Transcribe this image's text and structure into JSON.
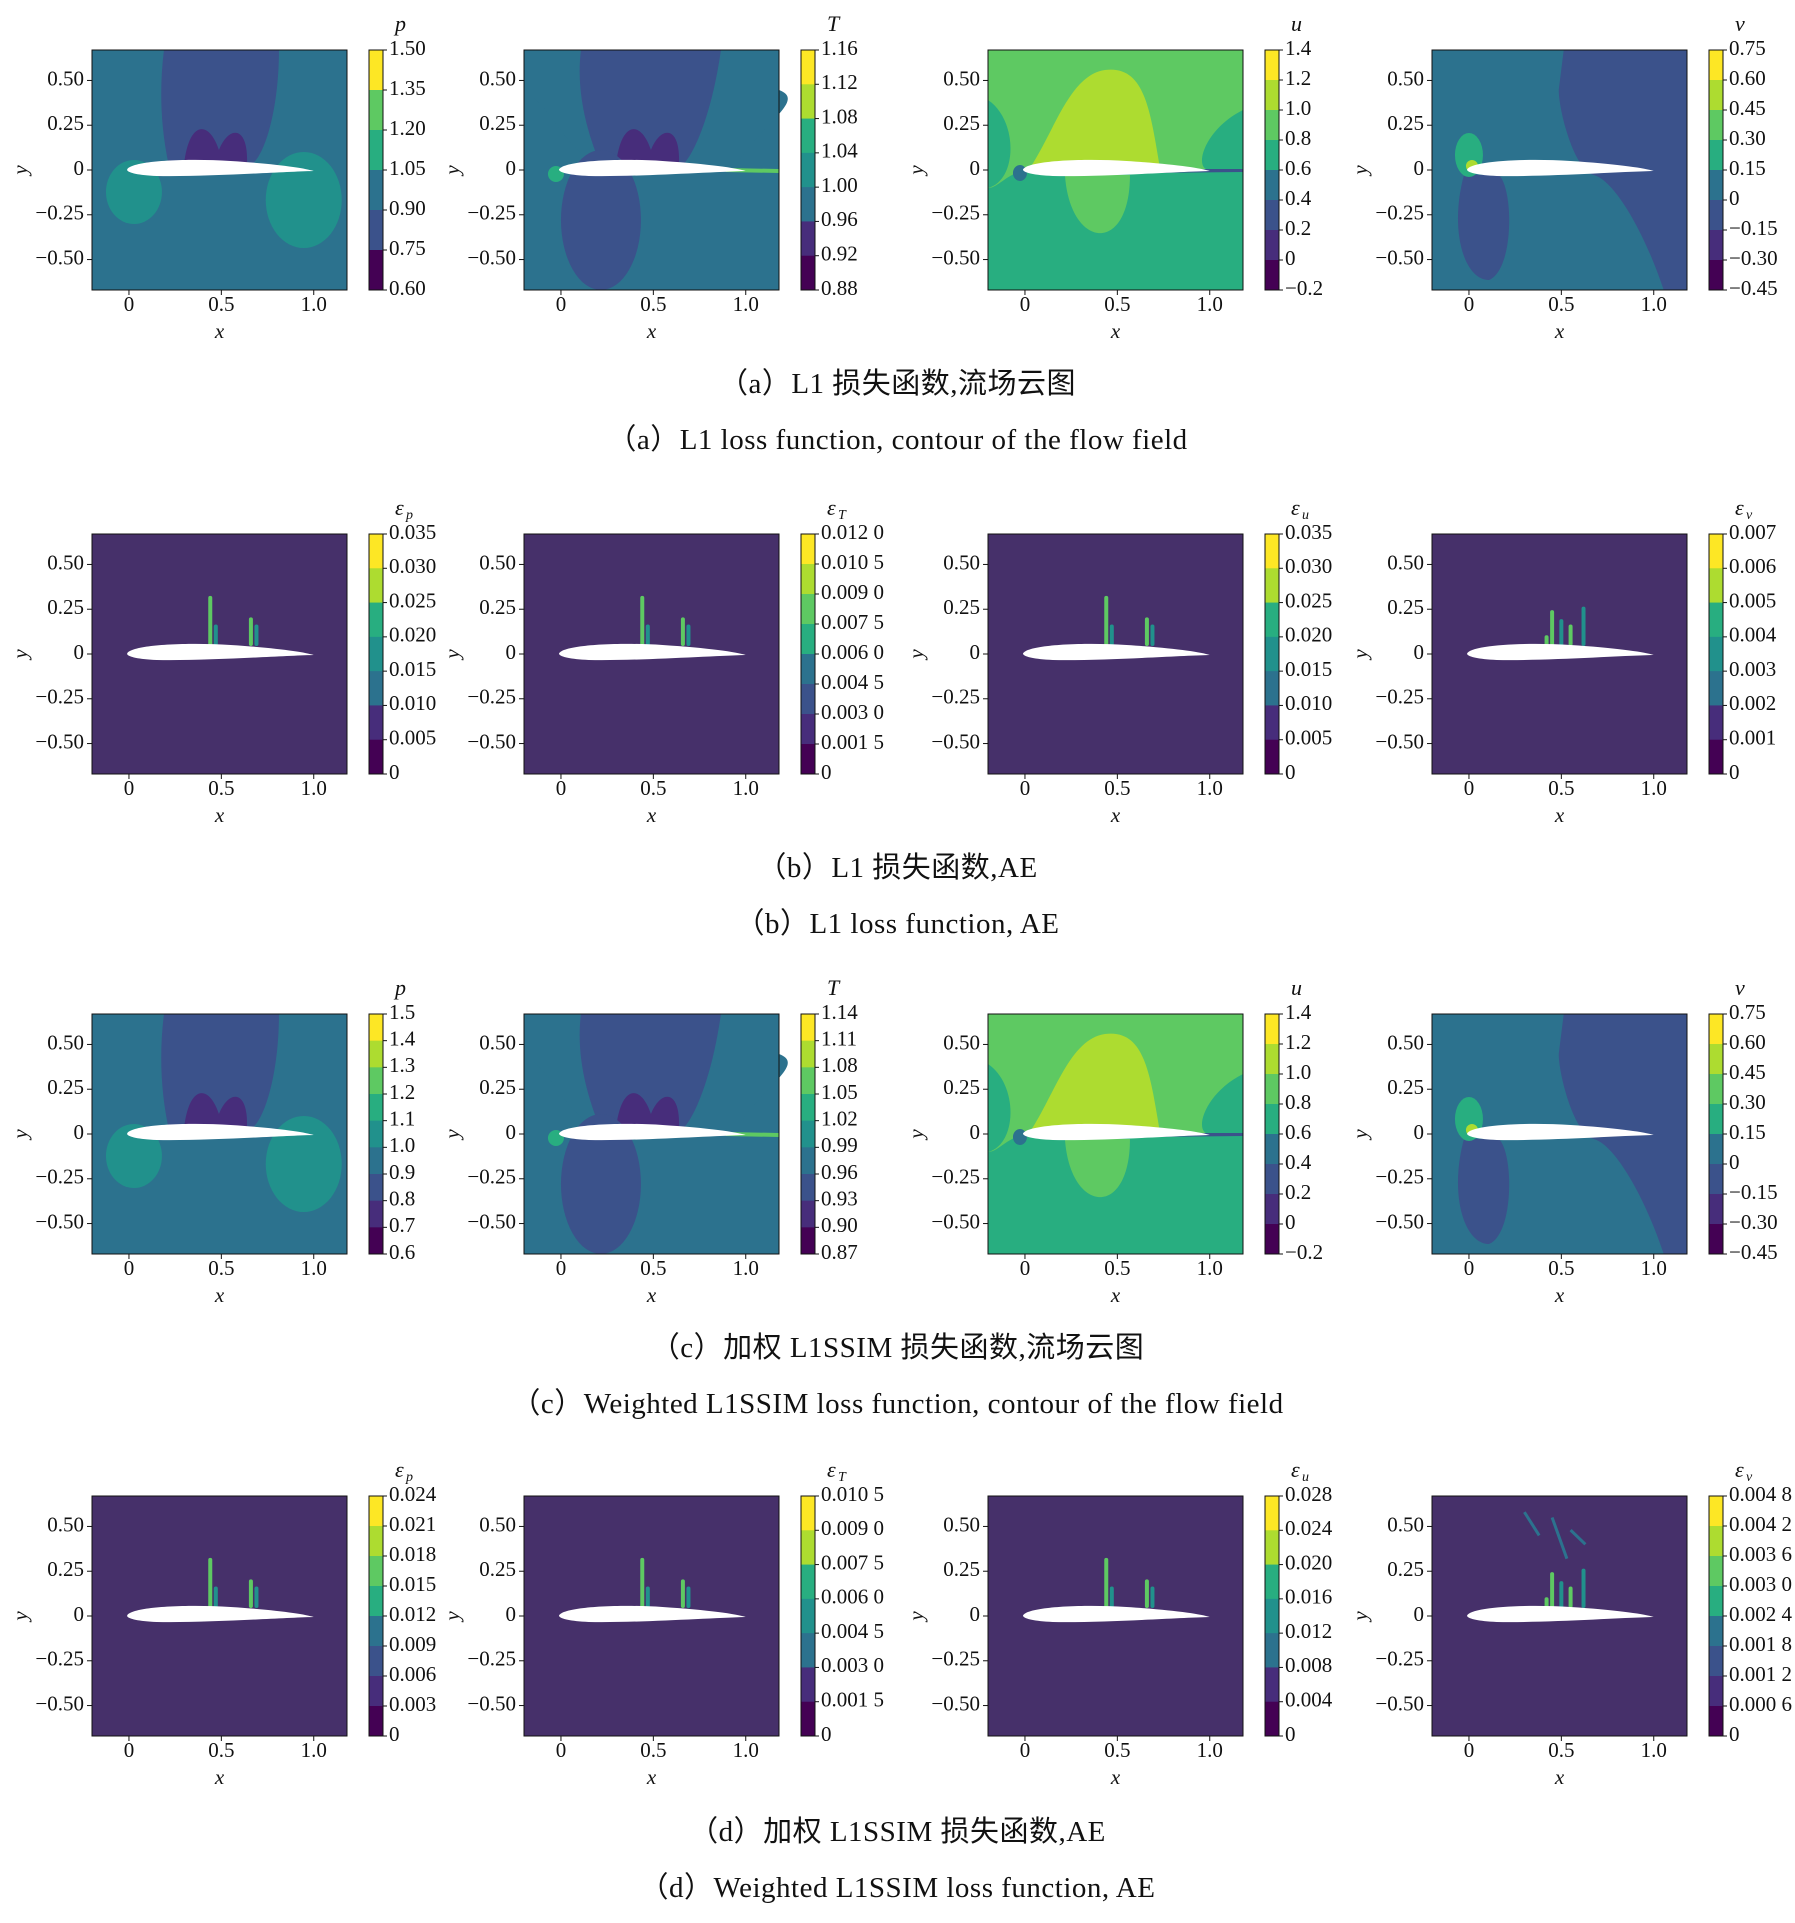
{
  "rows": [
    {
      "id": "a",
      "caption_cn": "（a）L1 损失函数,流场云图",
      "caption_en": "（a）L1 loss function, contour of the flow field",
      "plots": [
        {
          "quantity": "p",
          "kind": "field",
          "cbar_title": "p",
          "cbar_ticks": [
            "1.50",
            "1.35",
            "1.20",
            "1.05",
            "0.90",
            "0.75",
            "0.60"
          ],
          "x_ticks": [
            "0",
            "0.5",
            "1.0"
          ],
          "y_ticks": [
            "0.50",
            "0.25",
            "0",
            "−0.25",
            "−0.50"
          ],
          "xlabel": "x",
          "ylabel": "y"
        },
        {
          "quantity": "T",
          "kind": "field",
          "cbar_title": "T",
          "cbar_ticks": [
            "1.16",
            "1.12",
            "1.08",
            "1.04",
            "1.00",
            "0.96",
            "0.92",
            "0.88"
          ],
          "x_ticks": [
            "0",
            "0.5",
            "1.0"
          ],
          "y_ticks": [
            "0.50",
            "0.25",
            "0",
            "−0.25",
            "−0.50"
          ],
          "xlabel": "x",
          "ylabel": "y"
        },
        {
          "quantity": "u",
          "kind": "field",
          "cbar_title": "u",
          "cbar_ticks": [
            "1.4",
            "1.2",
            "1.0",
            "0.8",
            "0.6",
            "0.4",
            "0.2",
            "0",
            "−0.2"
          ],
          "x_ticks": [
            "0",
            "0.5",
            "1.0"
          ],
          "y_ticks": [
            "0.50",
            "0.25",
            "0",
            "−0.25",
            "−0.50"
          ],
          "xlabel": "x",
          "ylabel": "y"
        },
        {
          "quantity": "v",
          "kind": "field",
          "cbar_title": "v",
          "cbar_ticks": [
            "0.75",
            "0.60",
            "0.45",
            "0.30",
            "0.15",
            "0",
            "−0.15",
            "−0.30",
            "−0.45"
          ],
          "x_ticks": [
            "0",
            "0.5",
            "1.0"
          ],
          "y_ticks": [
            "0.50",
            "0.25",
            "0",
            "−0.25",
            "−0.50"
          ],
          "xlabel": "x",
          "ylabel": "y"
        }
      ]
    },
    {
      "id": "b",
      "caption_cn": "（b）L1 损失函数,AE",
      "caption_en": "（b）L1 loss function, AE",
      "plots": [
        {
          "quantity": "p",
          "kind": "error",
          "cbar_title": "ε",
          "cbar_sub": "p",
          "cbar_ticks": [
            "0.035",
            "0.030",
            "0.025",
            "0.020",
            "0.015",
            "0.010",
            "0.005",
            "0"
          ],
          "x_ticks": [
            "0",
            "0.5",
            "1.0"
          ],
          "y_ticks": [
            "0.50",
            "0.25",
            "0",
            "−0.25",
            "−0.50"
          ],
          "xlabel": "x",
          "ylabel": "y"
        },
        {
          "quantity": "T",
          "kind": "error",
          "cbar_title": "ε",
          "cbar_sub": "T",
          "cbar_ticks": [
            "0.012 0",
            "0.010 5",
            "0.009 0",
            "0.007 5",
            "0.006 0",
            "0.004 5",
            "0.003 0",
            "0.001 5",
            "0"
          ],
          "x_ticks": [
            "0",
            "0.5",
            "1.0"
          ],
          "y_ticks": [
            "0.50",
            "0.25",
            "0",
            "−0.25",
            "−0.50"
          ],
          "xlabel": "x",
          "ylabel": "y"
        },
        {
          "quantity": "u",
          "kind": "error",
          "cbar_title": "ε",
          "cbar_sub": "u",
          "cbar_ticks": [
            "0.035",
            "0.030",
            "0.025",
            "0.020",
            "0.015",
            "0.010",
            "0.005",
            "0"
          ],
          "x_ticks": [
            "0",
            "0.5",
            "1.0"
          ],
          "y_ticks": [
            "0.50",
            "0.25",
            "0",
            "−0.25",
            "−0.50"
          ],
          "xlabel": "x",
          "ylabel": "y"
        },
        {
          "quantity": "v",
          "kind": "error",
          "cbar_title": "ε",
          "cbar_sub": "v",
          "cbar_ticks": [
            "0.007",
            "0.006",
            "0.005",
            "0.004",
            "0.003",
            "0.002",
            "0.001",
            "0"
          ],
          "x_ticks": [
            "0",
            "0.5",
            "1.0"
          ],
          "y_ticks": [
            "0.50",
            "0.25",
            "0",
            "−0.25",
            "−0.50"
          ],
          "xlabel": "x",
          "ylabel": "y"
        }
      ]
    },
    {
      "id": "c",
      "caption_cn": "（c）加权 L1SSIM 损失函数,流场云图",
      "caption_en": "（c）Weighted L1SSIM loss function, contour of the flow field",
      "plots": [
        {
          "quantity": "p",
          "kind": "field",
          "cbar_title": "p",
          "cbar_ticks": [
            "1.5",
            "1.4",
            "1.3",
            "1.2",
            "1.1",
            "1.0",
            "0.9",
            "0.8",
            "0.7",
            "0.6"
          ],
          "x_ticks": [
            "0",
            "0.5",
            "1.0"
          ],
          "y_ticks": [
            "0.50",
            "0.25",
            "0",
            "−0.25",
            "−0.50"
          ],
          "xlabel": "x",
          "ylabel": "y"
        },
        {
          "quantity": "T",
          "kind": "field",
          "cbar_title": "T",
          "cbar_ticks": [
            "1.14",
            "1.11",
            "1.08",
            "1.05",
            "1.02",
            "0.99",
            "0.96",
            "0.93",
            "0.90",
            "0.87"
          ],
          "x_ticks": [
            "0",
            "0.5",
            "1.0"
          ],
          "y_ticks": [
            "0.50",
            "0.25",
            "0",
            "−0.25",
            "−0.50"
          ],
          "xlabel": "x",
          "ylabel": "y"
        },
        {
          "quantity": "u",
          "kind": "field",
          "cbar_title": "u",
          "cbar_ticks": [
            "1.4",
            "1.2",
            "1.0",
            "0.8",
            "0.6",
            "0.4",
            "0.2",
            "0",
            "−0.2"
          ],
          "x_ticks": [
            "0",
            "0.5",
            "1.0"
          ],
          "y_ticks": [
            "0.50",
            "0.25",
            "0",
            "−0.25",
            "−0.50"
          ],
          "xlabel": "x",
          "ylabel": "y"
        },
        {
          "quantity": "v",
          "kind": "field",
          "cbar_title": "v",
          "cbar_ticks": [
            "0.75",
            "0.60",
            "0.45",
            "0.30",
            "0.15",
            "0",
            "−0.15",
            "−0.30",
            "−0.45"
          ],
          "x_ticks": [
            "0",
            "0.5",
            "1.0"
          ],
          "y_ticks": [
            "0.50",
            "0.25",
            "0",
            "−0.25",
            "−0.50"
          ],
          "xlabel": "x",
          "ylabel": "y"
        }
      ]
    },
    {
      "id": "d",
      "caption_cn": "（d）加权 L1SSIM 损失函数,AE",
      "caption_en": "（d）Weighted L1SSIM loss function, AE",
      "plots": [
        {
          "quantity": "p",
          "kind": "error",
          "cbar_title": "ε",
          "cbar_sub": "p",
          "cbar_ticks": [
            "0.024",
            "0.021",
            "0.018",
            "0.015",
            "0.012",
            "0.009",
            "0.006",
            "0.003",
            "0"
          ],
          "x_ticks": [
            "0",
            "0.5",
            "1.0"
          ],
          "y_ticks": [
            "0.50",
            "0.25",
            "0",
            "−0.25",
            "−0.50"
          ],
          "xlabel": "x",
          "ylabel": "y"
        },
        {
          "quantity": "T",
          "kind": "error",
          "cbar_title": "ε",
          "cbar_sub": "T",
          "cbar_ticks": [
            "0.010 5",
            "0.009 0",
            "0.007 5",
            "0.006 0",
            "0.004 5",
            "0.003 0",
            "0.001 5",
            "0"
          ],
          "x_ticks": [
            "0",
            "0.5",
            "1.0"
          ],
          "y_ticks": [
            "0.50",
            "0.25",
            "0",
            "−0.25",
            "−0.50"
          ],
          "xlabel": "x",
          "ylabel": "y"
        },
        {
          "quantity": "u",
          "kind": "error",
          "cbar_title": "ε",
          "cbar_sub": "u",
          "cbar_ticks": [
            "0.028",
            "0.024",
            "0.020",
            "0.016",
            "0.012",
            "0.008",
            "0.004",
            "0"
          ],
          "x_ticks": [
            "0",
            "0.5",
            "1.0"
          ],
          "y_ticks": [
            "0.50",
            "0.25",
            "0",
            "−0.25",
            "−0.50"
          ],
          "xlabel": "x",
          "ylabel": "y"
        },
        {
          "quantity": "v",
          "kind": "error",
          "cbar_title": "ε",
          "cbar_sub": "v",
          "cbar_ticks": [
            "0.004 8",
            "0.004 2",
            "0.003 6",
            "0.003 0",
            "0.002 4",
            "0.001 8",
            "0.001 2",
            "0.000 6",
            "0"
          ],
          "x_ticks": [
            "0",
            "0.5",
            "1.0"
          ],
          "y_ticks": [
            "0.50",
            "0.25",
            "0",
            "−0.25",
            "−0.50"
          ],
          "xlabel": "x",
          "ylabel": "y"
        }
      ]
    }
  ],
  "colors": {
    "viridis": [
      "#440154",
      "#472d7b",
      "#3b528b",
      "#2c728e",
      "#21918c",
      "#28ae80",
      "#5ec962",
      "#addc30",
      "#fde725"
    ],
    "error_background": "#46306a",
    "airfoil": "#ffffff"
  }
}
